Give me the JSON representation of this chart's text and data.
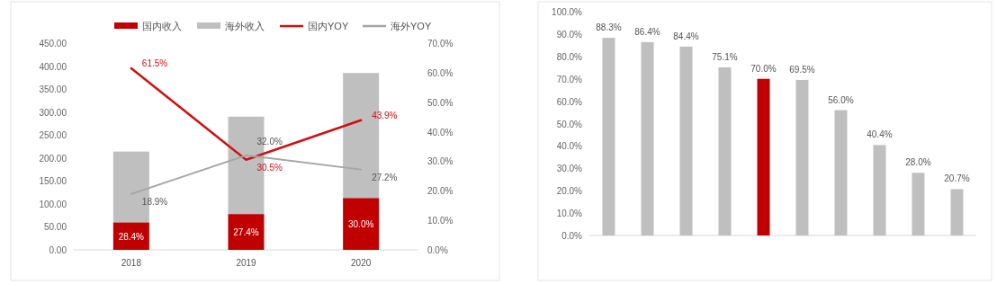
{
  "chart_data": [
    {
      "type": "bar",
      "categories": [
        "2018",
        "2019",
        "2020"
      ],
      "stacked": true,
      "legend": "top",
      "ylim": [
        0,
        450
      ],
      "yticks": [
        {
          "value": 0,
          "label": "0.00"
        },
        {
          "value": 50,
          "label": "50.00"
        },
        {
          "value": 100,
          "label": "100.00"
        },
        {
          "value": 150,
          "label": "150.00"
        },
        {
          "value": 200,
          "label": "200.00"
        },
        {
          "value": 250,
          "label": "250.00"
        },
        {
          "value": 300,
          "label": "300.00"
        },
        {
          "value": 350,
          "label": "350.00"
        },
        {
          "value": 400,
          "label": "400.00"
        },
        {
          "value": 450,
          "label": "450.00"
        }
      ],
      "annotations": [
        "28.4%",
        "27.4%",
        "30.0%"
      ],
      "y2lim": [
        0,
        70
      ],
      "y2ticks": [
        {
          "value": 0,
          "label": "0.0%"
        },
        {
          "value": 10,
          "label": "10.0%"
        },
        {
          "value": 20,
          "label": "20.0%"
        },
        {
          "value": 30,
          "label": "30.0%"
        },
        {
          "value": 40,
          "label": "40.0%"
        },
        {
          "value": 50,
          "label": "50.0%"
        },
        {
          "value": 60,
          "label": "60.0%"
        },
        {
          "value": 70,
          "label": "70.0%"
        }
      ],
      "series": [
        {
          "name": "国内收入",
          "type": "bar",
          "color": "#c00000",
          "values": [
            60,
            78,
            113
          ]
        },
        {
          "name": "海外收入",
          "type": "bar",
          "color": "#bfbfbf",
          "values": [
            154,
            212,
            272
          ]
        },
        {
          "name": "国内YOY",
          "type": "line",
          "axis": "y2",
          "color": "#d01010",
          "values": [
            61.5,
            30.5,
            43.9
          ],
          "value_labels": [
            "61.5%",
            "30.5%",
            "43.9%"
          ]
        },
        {
          "name": "海外YOY",
          "type": "line",
          "axis": "y2",
          "color": "#a6a6a6",
          "values": [
            18.9,
            32.0,
            27.2
          ],
          "value_labels": [
            "18.9%",
            "32.0%",
            "27.2%"
          ]
        }
      ]
    },
    {
      "type": "bar",
      "categories": [
        null,
        null,
        null,
        null,
        null,
        null,
        null,
        null,
        null,
        null
      ],
      "values": [
        88.3,
        86.4,
        84.4,
        75.1,
        70.0,
        69.5,
        56.0,
        40.4,
        28.0,
        20.7
      ],
      "colors": [
        "#bfbfbf",
        "#bfbfbf",
        "#bfbfbf",
        "#bfbfbf",
        "#c00000",
        "#bfbfbf",
        "#bfbfbf",
        "#bfbfbf",
        "#bfbfbf",
        "#bfbfbf"
      ],
      "value_labels": [
        "88.3%",
        "86.4%",
        "84.4%",
        "75.1%",
        "70.0%",
        "69.5%",
        "56.0%",
        "40.4%",
        "28.0%",
        "20.7%"
      ],
      "ylim": [
        0,
        100
      ],
      "yticks": [
        {
          "value": 0,
          "label": "0.0%"
        },
        {
          "value": 10,
          "label": "10.0%"
        },
        {
          "value": 20,
          "label": "20.0%"
        },
        {
          "value": 30,
          "label": "30.0%"
        },
        {
          "value": 40,
          "label": "40.0%"
        },
        {
          "value": 50,
          "label": "50.0%"
        },
        {
          "value": 60,
          "label": "60.0%"
        },
        {
          "value": 70,
          "label": "70.0%"
        },
        {
          "value": 80,
          "label": "80.0%"
        },
        {
          "value": 90,
          "label": "90.0%"
        },
        {
          "value": 100,
          "label": "100.0%"
        }
      ]
    }
  ]
}
